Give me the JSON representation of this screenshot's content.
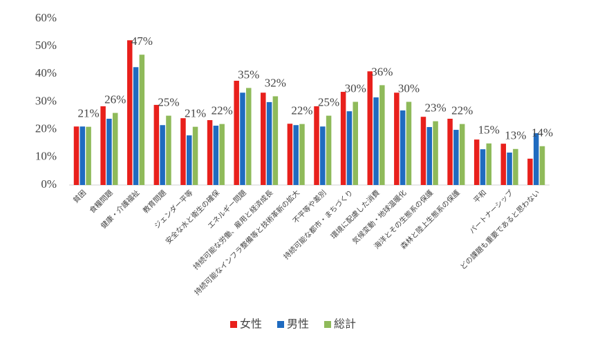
{
  "chart_data": {
    "type": "bar",
    "categories": [
      "貧困",
      "食糧問題",
      "健康・介護福祉",
      "教育問題",
      "ジェンダー平等",
      "安全な水と衛生の確保",
      "エネルギー問題",
      "持続可能な労働、雇用と経済成長",
      "持続可能なインフラ整備等と技術革新の拡大",
      "不平等や差別",
      "持続可能な都市・まちづくり",
      "環境に配慮した消費",
      "気候変動・地球温暖化",
      "海洋とその生態系の保護",
      "森林と陸上生態系の保護",
      "平和",
      "パートナーシップ",
      "どの課題も重要であると思わない"
    ],
    "series": [
      {
        "name": "女性",
        "color": "#e8201c",
        "values": [
          21.1,
          28.4,
          52.2,
          28.9,
          24.1,
          23.4,
          37.6,
          33.3,
          22.1,
          28.4,
          33.6,
          41.0,
          33.3,
          24.6,
          23.9,
          16.4,
          14.9,
          9.5
        ]
      },
      {
        "name": "男性",
        "color": "#1f6bc0",
        "values": [
          21.1,
          23.9,
          42.5,
          21.6,
          17.9,
          21.4,
          33.3,
          29.9,
          21.6,
          21.1,
          26.6,
          31.6,
          26.9,
          20.9,
          19.9,
          12.9,
          11.7,
          18.7
        ]
      },
      {
        "name": "総計",
        "color": "#8fba5a",
        "values": [
          21,
          26,
          47,
          25,
          21,
          22,
          35,
          32,
          22,
          25,
          30,
          36,
          30,
          23,
          22,
          15,
          13,
          14
        ],
        "value_labels": [
          "21%",
          "26%",
          "47%",
          "25%",
          "21%",
          "22%",
          "35%",
          "32%",
          "22%",
          "25%",
          "30%",
          "36%",
          "30%",
          "23%",
          "22%",
          "15%",
          "13%",
          "14%"
        ]
      }
    ],
    "ylim": [
      0,
      60
    ],
    "yticks": [
      {
        "value": 0,
        "label": "0%"
      },
      {
        "value": 10,
        "label": "10%"
      },
      {
        "value": 20,
        "label": "20%"
      },
      {
        "value": 30,
        "label": "30%"
      },
      {
        "value": 40,
        "label": "40%"
      },
      {
        "value": 50,
        "label": "50%"
      },
      {
        "value": 60,
        "label": "60%"
      }
    ],
    "legend": "bottom"
  }
}
